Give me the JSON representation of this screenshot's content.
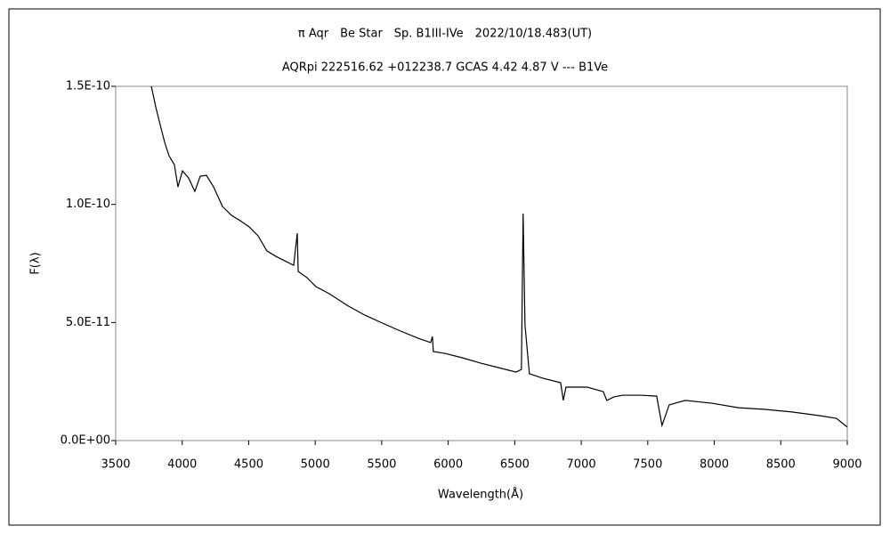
{
  "chart_data": {
    "type": "line",
    "title": "π Aqr　Be Star　Sp. B1III-IVe　2022/10/18.483(UT)",
    "subtitle": "AQRpi 222516.62 +012238.7 GCAS 4.42 4.87 V --- B1Ve",
    "x_label": "Wavelength(Å)",
    "y_label": "F(λ)",
    "xlim": [
      3500,
      9000
    ],
    "xticks": [
      3500,
      4000,
      4500,
      5000,
      5500,
      6000,
      6500,
      7000,
      7500,
      8000,
      8500,
      9000
    ],
    "ylim": [
      0,
      1.5e-10
    ],
    "yticks": [
      {
        "value": 0,
        "label": "0.0E+00"
      },
      {
        "value": 5e-11,
        "label": "5.0E-11"
      },
      {
        "value": 1e-10,
        "label": "1.0E-10"
      },
      {
        "value": 1.5e-10,
        "label": "1.5E-10"
      }
    ],
    "grid": false,
    "x": [
      3768,
      3801,
      3834,
      3868,
      3901,
      3941,
      3968,
      4002,
      4048,
      4095,
      4135,
      4182,
      4236,
      4303,
      4370,
      4436,
      4503,
      4570,
      4637,
      4704,
      4771,
      4838,
      4865,
      4872,
      4938,
      5005,
      5105,
      5239,
      5373,
      5507,
      5640,
      5774,
      5868,
      5881,
      5888,
      5975,
      6109,
      6242,
      6376,
      6510,
      6550,
      6563,
      6577,
      6610,
      6711,
      6845,
      6865,
      6885,
      7045,
      7166,
      7192,
      7246,
      7313,
      7447,
      7567,
      7607,
      7661,
      7781,
      7982,
      8182,
      8383,
      8584,
      8785,
      8918,
      9000
    ],
    "series": [
      {
        "color": "#000000",
        "values": [
          1.5e-10,
          1.413e-10,
          1.338e-10,
          1.263e-10,
          1.206e-10,
          1.168e-10,
          1.074e-10,
          1.142e-10,
          1.112e-10,
          1.055e-10,
          1.119e-10,
          1.123e-10,
          1.074e-10,
          9.91e-11,
          9.54e-11,
          9.31e-11,
          9.05e-11,
          8.67e-11,
          8.03e-11,
          7.8e-11,
          7.61e-11,
          7.42e-11,
          8.78e-11,
          7.16e-11,
          6.9e-11,
          6.52e-11,
          6.22e-11,
          5.73e-11,
          5.31e-11,
          4.97e-11,
          4.64e-11,
          4.33e-11,
          4.15e-11,
          4.41e-11,
          3.77e-11,
          3.69e-11,
          3.5e-11,
          3.28e-11,
          3.09e-11,
          2.9e-11,
          3.01e-11,
          9.61e-11,
          4.9e-11,
          2.83e-11,
          2.64e-11,
          2.45e-11,
          1.7e-11,
          2.26e-11,
          2.26e-11,
          2.07e-11,
          1.7e-11,
          1.85e-11,
          1.92e-11,
          1.92e-11,
          1.88e-11,
          6.4e-12,
          1.51e-11,
          1.7e-11,
          1.58e-11,
          1.39e-11,
          1.32e-11,
          1.21e-11,
          1.06e-11,
          9.4e-12,
          5.7e-12
        ]
      }
    ]
  }
}
